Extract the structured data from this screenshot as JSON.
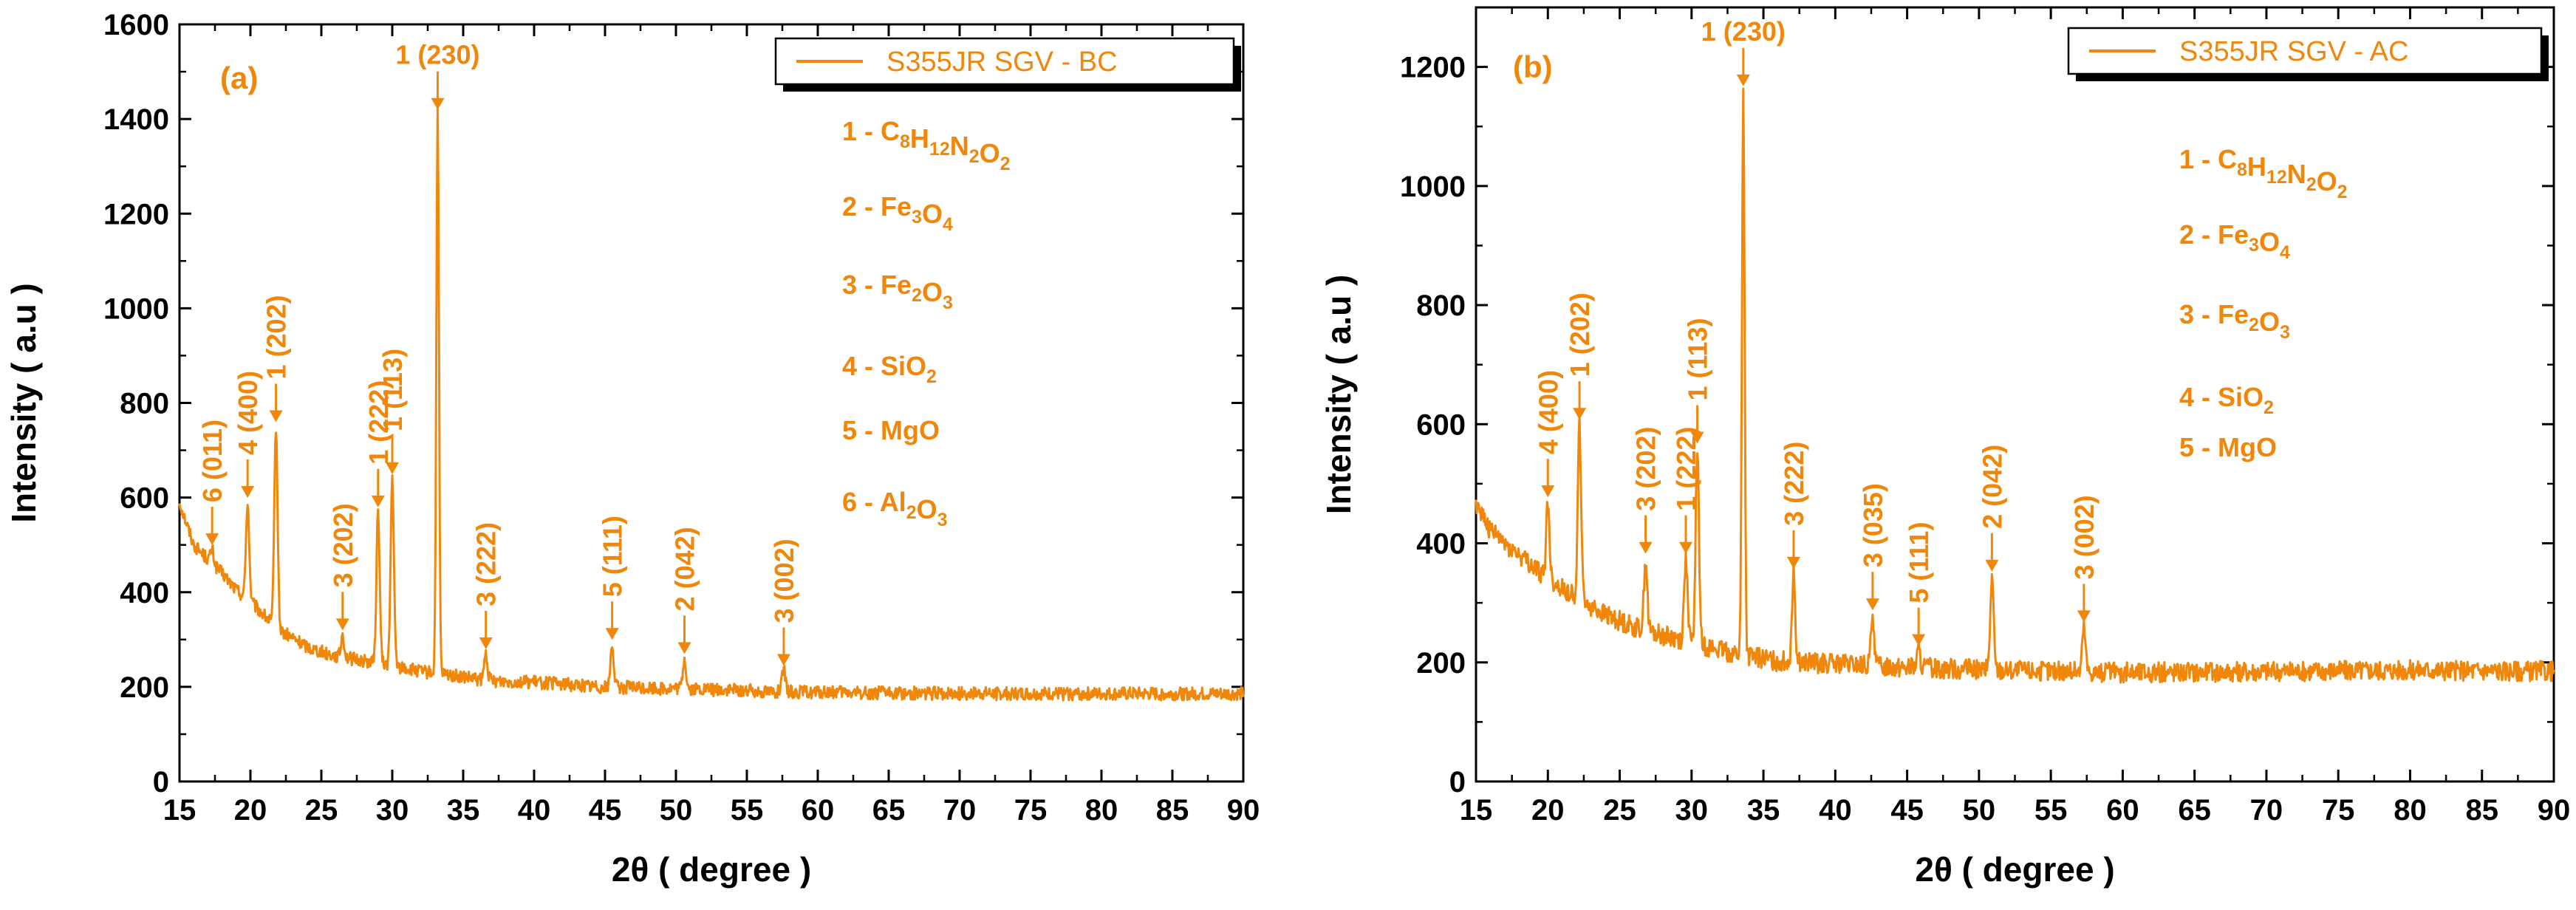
{
  "chart_data": [
    {
      "type": "line",
      "panel_label": "(a)",
      "legend": "S355JR SGV - BC",
      "xlabel": "2θ ( degree )",
      "ylabel": "Intensity ( a.u )",
      "xlim": [
        15,
        90
      ],
      "ylim": [
        0,
        1600
      ],
      "xticks": [
        15,
        20,
        25,
        30,
        35,
        40,
        45,
        50,
        55,
        60,
        65,
        70,
        75,
        80,
        85,
        90
      ],
      "yticks": [
        0,
        200,
        400,
        600,
        800,
        1000,
        1200,
        1400,
        1600
      ],
      "color": "#f0870a",
      "series": [
        {
          "name": "S355JR SGV - BC",
          "background": [
            [
              15,
              590
            ],
            [
              16,
              500
            ],
            [
              17,
              470
            ],
            [
              18,
              440
            ],
            [
              19,
              405
            ],
            [
              20,
              380
            ],
            [
              22,
              320
            ],
            [
              24,
              285
            ],
            [
              26,
              265
            ],
            [
              28,
              255
            ],
            [
              30,
              245
            ],
            [
              32,
              232
            ],
            [
              34,
              225
            ],
            [
              36,
              215
            ],
            [
              38,
              212
            ],
            [
              40,
              210
            ],
            [
              45,
              200
            ],
            [
              50,
              196
            ],
            [
              55,
              192
            ],
            [
              60,
              188
            ],
            [
              70,
              186
            ],
            [
              80,
              185
            ],
            [
              90,
              185
            ]
          ],
          "peaks": [
            [
              17.3,
              490
            ],
            [
              19.8,
              590
            ],
            [
              21.8,
              750
            ],
            [
              26.5,
              310
            ],
            [
              29.0,
              570
            ],
            [
              30.0,
              640
            ],
            [
              33.2,
              1410
            ],
            [
              36.6,
              270
            ],
            [
              45.5,
              290
            ],
            [
              50.6,
              260
            ],
            [
              57.6,
              235
            ]
          ]
        }
      ],
      "annotations": [
        {
          "label": "6 (011)",
          "x": 17.3,
          "y": 490,
          "vertical": true
        },
        {
          "label": "4 (400)",
          "x": 19.8,
          "y": 590,
          "vertical": true
        },
        {
          "label": "1 (202)",
          "x": 21.8,
          "y": 750,
          "vertical": true
        },
        {
          "label": "3 (202)",
          "x": 26.5,
          "y": 310,
          "vertical": true
        },
        {
          "label": "1 (222)",
          "x": 29.0,
          "y": 570,
          "vertical": true
        },
        {
          "label": "1 (113)",
          "x": 30.0,
          "y": 640,
          "vertical": true
        },
        {
          "label": "1 (230)",
          "x": 33.2,
          "y": 1410,
          "vertical": false
        },
        {
          "label": "3 (222)",
          "x": 36.6,
          "y": 270,
          "vertical": true
        },
        {
          "label": "5 (111)",
          "x": 45.5,
          "y": 290,
          "vertical": true
        },
        {
          "label": "2 (042)",
          "x": 50.6,
          "y": 260,
          "vertical": true
        },
        {
          "label": "3 (002)",
          "x": 57.6,
          "y": 235,
          "vertical": true
        }
      ],
      "compounds": [
        {
          "num": "1",
          "parts": [
            [
              "C",
              ""
            ],
            [
              "8",
              "s"
            ],
            [
              "H",
              ""
            ],
            [
              "12",
              "s"
            ],
            [
              "N",
              ""
            ],
            [
              "2",
              "s"
            ],
            [
              "O",
              ""
            ],
            [
              "2",
              "s"
            ]
          ]
        },
        {
          "num": "2",
          "parts": [
            [
              "Fe",
              ""
            ],
            [
              "3",
              "s"
            ],
            [
              "O",
              ""
            ],
            [
              "4",
              "s"
            ]
          ]
        },
        {
          "num": "3",
          "parts": [
            [
              "Fe",
              ""
            ],
            [
              "2",
              "s"
            ],
            [
              "O",
              ""
            ],
            [
              "3",
              "s"
            ]
          ]
        },
        {
          "num": "4",
          "parts": [
            [
              "SiO",
              ""
            ],
            [
              "2",
              "s"
            ]
          ]
        },
        {
          "num": "5",
          "parts": [
            [
              "MgO",
              ""
            ]
          ]
        },
        {
          "num": "6",
          "parts": [
            [
              "Al",
              ""
            ],
            [
              "2",
              "s"
            ],
            [
              "O",
              ""
            ],
            [
              "3",
              "s"
            ]
          ]
        }
      ]
    },
    {
      "type": "line",
      "panel_label": "(b)",
      "legend": "S355JR SGV - AC",
      "xlabel": "2θ ( degree )",
      "ylabel": "Intensity ( a.u )",
      "xlim": [
        15,
        90
      ],
      "ylim": [
        0,
        1300
      ],
      "xticks": [
        15,
        20,
        25,
        30,
        35,
        40,
        45,
        50,
        55,
        60,
        65,
        70,
        75,
        80,
        85,
        90
      ],
      "yticks": [
        0,
        200,
        400,
        600,
        800,
        1000,
        1200
      ],
      "color": "#f0870a",
      "series": [
        {
          "name": "S355JR SGV - AC",
          "background": [
            [
              15,
              470
            ],
            [
              16,
              420
            ],
            [
              17,
              400
            ],
            [
              18,
              380
            ],
            [
              19,
              360
            ],
            [
              20,
              340
            ],
            [
              22,
              310
            ],
            [
              24,
              280
            ],
            [
              26,
              260
            ],
            [
              28,
              245
            ],
            [
              30,
              235
            ],
            [
              32,
              220
            ],
            [
              34,
              210
            ],
            [
              36,
              202
            ],
            [
              38,
              200
            ],
            [
              40,
              197
            ],
            [
              45,
              192
            ],
            [
              50,
              188
            ],
            [
              55,
              185
            ],
            [
              60,
              183
            ],
            [
              70,
              185
            ],
            [
              80,
              187
            ],
            [
              90,
              185
            ]
          ],
          "peaks": [
            [
              20.0,
              470
            ],
            [
              22.2,
              600
            ],
            [
              26.8,
              375
            ],
            [
              29.6,
              375
            ],
            [
              30.4,
              560
            ],
            [
              33.6,
              1160
            ],
            [
              37.1,
              350
            ],
            [
              42.6,
              280
            ],
            [
              45.8,
              220
            ],
            [
              50.9,
              345
            ],
            [
              57.3,
              260
            ]
          ]
        }
      ],
      "annotations": [
        {
          "label": "4 (400)",
          "x": 20.0,
          "y": 470,
          "vertical": true
        },
        {
          "label": "1 (202)",
          "x": 22.2,
          "y": 600,
          "vertical": true
        },
        {
          "label": "3 (202)",
          "x": 26.8,
          "y": 375,
          "vertical": true
        },
        {
          "label": "1 (222)",
          "x": 29.6,
          "y": 375,
          "vertical": true
        },
        {
          "label": "1 (113)",
          "x": 30.4,
          "y": 560,
          "vertical": true
        },
        {
          "label": "1 (230)",
          "x": 33.6,
          "y": 1160,
          "vertical": false
        },
        {
          "label": "3 (222)",
          "x": 37.1,
          "y": 350,
          "vertical": true
        },
        {
          "label": "3 (035)",
          "x": 42.6,
          "y": 280,
          "vertical": true
        },
        {
          "label": "5 (111)",
          "x": 45.8,
          "y": 220,
          "vertical": true
        },
        {
          "label": "2 (042)",
          "x": 50.9,
          "y": 345,
          "vertical": true
        },
        {
          "label": "3 (002)",
          "x": 57.3,
          "y": 260,
          "vertical": true
        }
      ],
      "compounds": [
        {
          "num": "1",
          "parts": [
            [
              "C",
              ""
            ],
            [
              "8",
              "s"
            ],
            [
              "H",
              ""
            ],
            [
              "12",
              "s"
            ],
            [
              "N",
              ""
            ],
            [
              "2",
              "s"
            ],
            [
              "O",
              ""
            ],
            [
              "2",
              "s"
            ]
          ]
        },
        {
          "num": "2",
          "parts": [
            [
              "Fe",
              ""
            ],
            [
              "3",
              "s"
            ],
            [
              "O",
              ""
            ],
            [
              "4",
              "s"
            ]
          ]
        },
        {
          "num": "3",
          "parts": [
            [
              "Fe",
              ""
            ],
            [
              "2",
              "s"
            ],
            [
              "O",
              ""
            ],
            [
              "3",
              "s"
            ]
          ]
        },
        {
          "num": "4",
          "parts": [
            [
              "SiO",
              ""
            ],
            [
              "2",
              "s"
            ]
          ]
        },
        {
          "num": "5",
          "parts": [
            [
              "MgO",
              ""
            ]
          ]
        }
      ]
    }
  ]
}
